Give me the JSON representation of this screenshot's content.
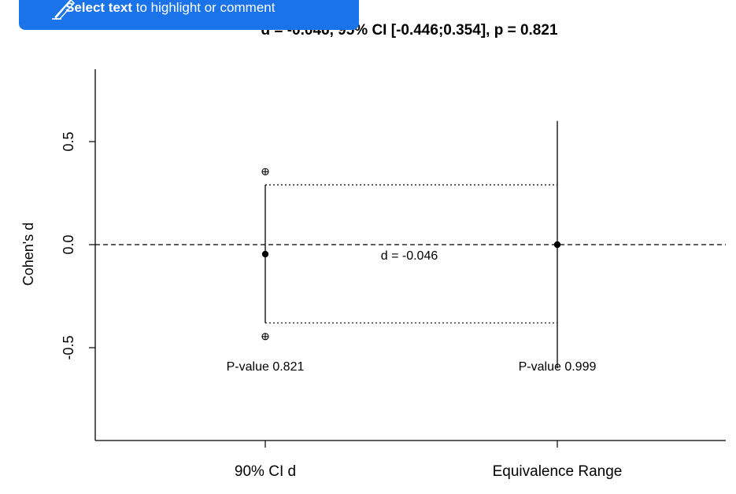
{
  "banner": {
    "bold_text": "Select text",
    "rest_text": " to highlight or comment",
    "icon": "highlighter-pen-icon",
    "color": "#1a73e8"
  },
  "chart_data": {
    "type": "equivalence-test",
    "title": "d = -0.046, 95% CI [-0.446;0.354], p = 0.821",
    "xlabel": "",
    "ylabel": "Cohen's d",
    "ylim": [
      -0.95,
      0.85
    ],
    "yticks": [
      -0.5,
      0.0,
      0.5
    ],
    "ytick_labels": [
      "-0.5",
      "0.0",
      "0.5"
    ],
    "categories": [
      "90% CI d",
      "Equivalence Range"
    ],
    "ci90": {
      "estimate": -0.046,
      "lower": -0.38,
      "upper": 0.29
    },
    "ci95": {
      "lower": -0.446,
      "upper": 0.354
    },
    "equivalence": {
      "estimate": 0.0,
      "lower": -0.6,
      "upper": 0.6
    },
    "reference_line": 0.0,
    "estimate_label": "d =  -0.046",
    "pvalue_labels": [
      "P-value 0.821",
      "P-value 0.999"
    ]
  }
}
